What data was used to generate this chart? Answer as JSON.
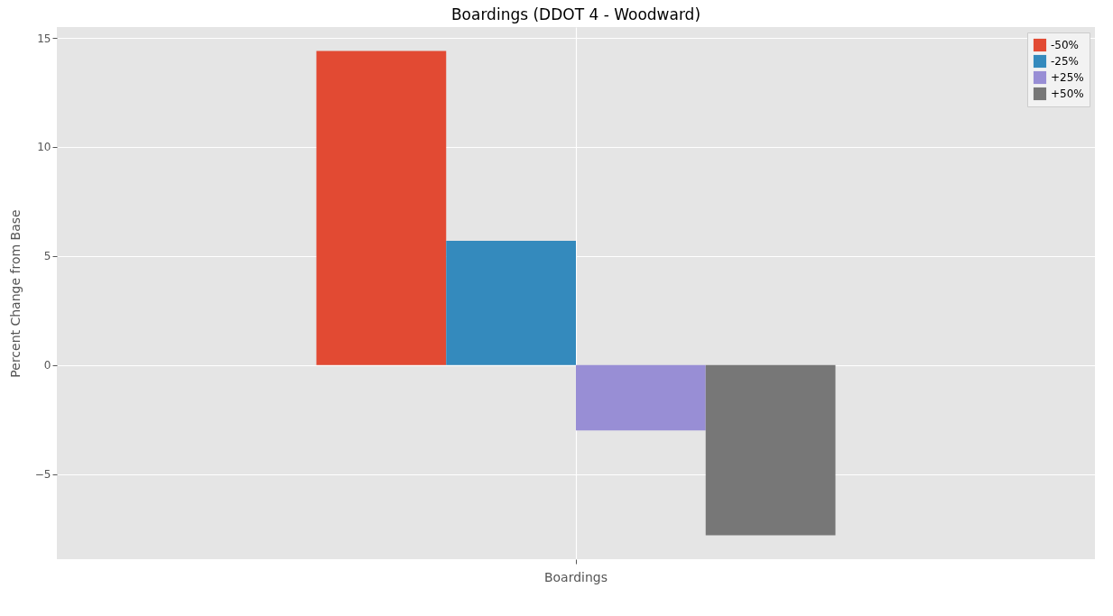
{
  "chart_data": {
    "type": "bar",
    "title": "Boardings (DDOT 4 - Woodward)",
    "ylabel": "Percent Change from Base",
    "categories": [
      "Boardings"
    ],
    "series": [
      {
        "name": "-50%",
        "color": "#e24a33",
        "values": [
          14.4
        ]
      },
      {
        "name": "-25%",
        "color": "#348abd",
        "values": [
          5.7
        ]
      },
      {
        "name": "+25%",
        "color": "#988ed5",
        "values": [
          -3.0
        ]
      },
      {
        "name": "+50%",
        "color": "#777777",
        "values": [
          -7.8
        ]
      }
    ],
    "ylim": [
      -8.9,
      15.5
    ],
    "yticks": [
      {
        "value": -5,
        "label": "−5"
      },
      0,
      5,
      10,
      15
    ],
    "grid": true,
    "legend": "top right"
  }
}
